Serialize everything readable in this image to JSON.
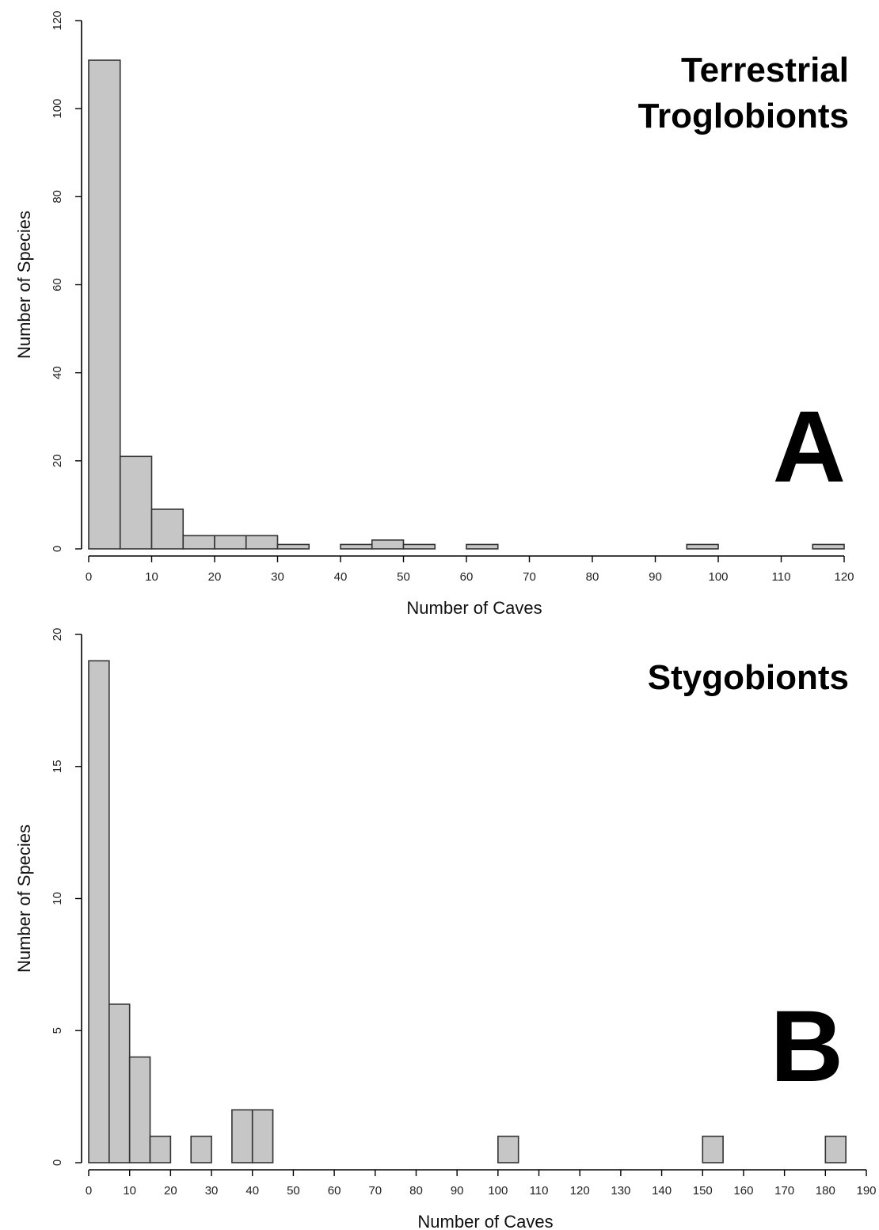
{
  "chart_data": [
    {
      "type": "bar",
      "panel_letter": "A",
      "title_lines": [
        "Terrestrial",
        "Troglobionts"
      ],
      "xlabel": "Number of Caves",
      "ylabel": "Number of Species",
      "xlim": [
        0,
        120
      ],
      "ylim": [
        0,
        120
      ],
      "x_ticks": [
        0,
        10,
        20,
        30,
        40,
        50,
        60,
        70,
        80,
        90,
        100,
        110,
        120
      ],
      "y_ticks": [
        0,
        20,
        40,
        60,
        80,
        100,
        120
      ],
      "bin_width": 5,
      "bins": [
        {
          "start": 0,
          "end": 5,
          "value": 111
        },
        {
          "start": 5,
          "end": 10,
          "value": 21
        },
        {
          "start": 10,
          "end": 15,
          "value": 9
        },
        {
          "start": 15,
          "end": 20,
          "value": 3
        },
        {
          "start": 20,
          "end": 25,
          "value": 3
        },
        {
          "start": 25,
          "end": 30,
          "value": 3
        },
        {
          "start": 30,
          "end": 35,
          "value": 1
        },
        {
          "start": 40,
          "end": 45,
          "value": 1
        },
        {
          "start": 45,
          "end": 50,
          "value": 2
        },
        {
          "start": 50,
          "end": 55,
          "value": 1
        },
        {
          "start": 60,
          "end": 65,
          "value": 1
        },
        {
          "start": 95,
          "end": 100,
          "value": 1
        },
        {
          "start": 115,
          "end": 120,
          "value": 1
        }
      ],
      "grid": false
    },
    {
      "type": "bar",
      "panel_letter": "B",
      "title_lines": [
        "Stygobionts"
      ],
      "xlabel": "Number of Caves",
      "ylabel": "Number of Species",
      "xlim": [
        0,
        190
      ],
      "ylim": [
        0,
        20
      ],
      "x_ticks": [
        0,
        10,
        20,
        30,
        40,
        50,
        60,
        70,
        80,
        90,
        100,
        110,
        120,
        130,
        140,
        150,
        160,
        170,
        180,
        190
      ],
      "y_ticks": [
        0,
        5,
        10,
        15,
        20
      ],
      "bin_width": 5,
      "bins": [
        {
          "start": 0,
          "end": 5,
          "value": 19
        },
        {
          "start": 5,
          "end": 10,
          "value": 6
        },
        {
          "start": 10,
          "end": 15,
          "value": 4
        },
        {
          "start": 15,
          "end": 20,
          "value": 1
        },
        {
          "start": 25,
          "end": 30,
          "value": 1
        },
        {
          "start": 35,
          "end": 40,
          "value": 2
        },
        {
          "start": 40,
          "end": 45,
          "value": 2
        },
        {
          "start": 100,
          "end": 105,
          "value": 1
        },
        {
          "start": 150,
          "end": 155,
          "value": 1
        },
        {
          "start": 180,
          "end": 185,
          "value": 1
        }
      ],
      "grid": false
    }
  ]
}
